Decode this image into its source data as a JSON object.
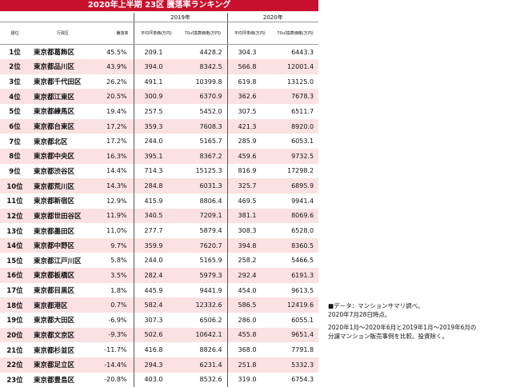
{
  "title": "2020年上半期 23区 騰落率ランキング",
  "years": {
    "y2019": "2019年",
    "y2020": "2020年"
  },
  "columns": {
    "rank": "順位",
    "ward": "行政区",
    "rate": "騰落率",
    "unit_price": "平均坪単価(万円)",
    "converted_70": "70㎡換算価格(万円)"
  },
  "rows": [
    {
      "rank": "1位",
      "ward": "東京都葛飾区",
      "rate": "45.5%",
      "p19": "209.1",
      "c19": "4428.2",
      "p20": "304.3",
      "c20": "6443.3"
    },
    {
      "rank": "2位",
      "ward": "東京都品川区",
      "rate": "43.9%",
      "p19": "394.0",
      "c19": "8342.5",
      "p20": "566.8",
      "c20": "12001.4"
    },
    {
      "rank": "3位",
      "ward": "東京都千代田区",
      "rate": "26.2%",
      "p19": "491.1",
      "c19": "10399.8",
      "p20": "619.8",
      "c20": "13125.0"
    },
    {
      "rank": "4位",
      "ward": "東京都江東区",
      "rate": "20.5%",
      "p19": "300.9",
      "c19": "6370.9",
      "p20": "362.6",
      "c20": "7678.3"
    },
    {
      "rank": "5位",
      "ward": "東京都練馬区",
      "rate": "19.4%",
      "p19": "257.5",
      "c19": "5452.0",
      "p20": "307.5",
      "c20": "6511.7"
    },
    {
      "rank": "6位",
      "ward": "東京都台東区",
      "rate": "17.2%",
      "p19": "359.3",
      "c19": "7608.3",
      "p20": "421.3",
      "c20": "8920.0"
    },
    {
      "rank": "7位",
      "ward": "東京都北区",
      "rate": "17.2%",
      "p19": "244.0",
      "c19": "5165.7",
      "p20": "285.9",
      "c20": "6053.1"
    },
    {
      "rank": "8位",
      "ward": "東京都中央区",
      "rate": "16.3%",
      "p19": "395.1",
      "c19": "8367.2",
      "p20": "459.6",
      "c20": "9732.5"
    },
    {
      "rank": "9位",
      "ward": "東京都渋谷区",
      "rate": "14.4%",
      "p19": "714.3",
      "c19": "15125.3",
      "p20": "816.9",
      "c20": "17298.2"
    },
    {
      "rank": "10位",
      "ward": "東京都荒川区",
      "rate": "14.3%",
      "p19": "284.8",
      "c19": "6031.3",
      "p20": "325.7",
      "c20": "6895.9"
    },
    {
      "rank": "11位",
      "ward": "東京都新宿区",
      "rate": "12.9%",
      "p19": "415.9",
      "c19": "8806.4",
      "p20": "469.5",
      "c20": "9941.4"
    },
    {
      "rank": "12位",
      "ward": "東京都世田谷区",
      "rate": "11.9%",
      "p19": "340.5",
      "c19": "7209.1",
      "p20": "381.1",
      "c20": "8069.6"
    },
    {
      "rank": "13位",
      "ward": "東京都墨田区",
      "rate": "11.0%",
      "p19": "277.7",
      "c19": "5879.4",
      "p20": "308.3",
      "c20": "6528.0"
    },
    {
      "rank": "14位",
      "ward": "東京都中野区",
      "rate": "9.7%",
      "p19": "359.9",
      "c19": "7620.7",
      "p20": "394.8",
      "c20": "8360.5"
    },
    {
      "rank": "15位",
      "ward": "東京都江戸川区",
      "rate": "5.8%",
      "p19": "244.0",
      "c19": "5165.9",
      "p20": "258.2",
      "c20": "5466.5"
    },
    {
      "rank": "16位",
      "ward": "東京都板橋区",
      "rate": "3.5%",
      "p19": "282.4",
      "c19": "5979.3",
      "p20": "292.4",
      "c20": "6191.3"
    },
    {
      "rank": "17位",
      "ward": "東京都目黒区",
      "rate": "1.8%",
      "p19": "445.9",
      "c19": "9441.9",
      "p20": "454.0",
      "c20": "9613.5"
    },
    {
      "rank": "18位",
      "ward": "東京都港区",
      "rate": "0.7%",
      "p19": "582.4",
      "c19": "12332.6",
      "p20": "586.5",
      "c20": "12419.6"
    },
    {
      "rank": "19位",
      "ward": "東京都大田区",
      "rate": "-6.9%",
      "p19": "307.3",
      "c19": "6506.2",
      "p20": "286.0",
      "c20": "6055.1"
    },
    {
      "rank": "20位",
      "ward": "東京都文京区",
      "rate": "-9.3%",
      "p19": "502.6",
      "c19": "10642.1",
      "p20": "455.8",
      "c20": "9651.4"
    },
    {
      "rank": "21位",
      "ward": "東京都杉並区",
      "rate": "-11.7%",
      "p19": "416.8",
      "c19": "8826.4",
      "p20": "368.0",
      "c20": "7791.8"
    },
    {
      "rank": "22位",
      "ward": "東京都足立区",
      "rate": "-14.4%",
      "p19": "294.3",
      "c19": "6231.4",
      "p20": "251.8",
      "c20": "5332.3"
    },
    {
      "rank": "23位",
      "ward": "東京都豊島区",
      "rate": "-20.8%",
      "p19": "403.0",
      "c19": "8532.6",
      "p20": "319.0",
      "c20": "6754.3"
    }
  ],
  "notes": {
    "source_line1": "■データ：マンションサマリ調べ。",
    "source_line2": "2020年7月28日時点。",
    "method_line1": "2020年1月～2020年6月と2019年1月～2019年6月の",
    "method_line2": "分譲マンション販売事例を比較。投資除く。"
  },
  "colors": {
    "title_bg": "#c8102e",
    "stripe": "#fbe1e1",
    "text": "#111111"
  }
}
